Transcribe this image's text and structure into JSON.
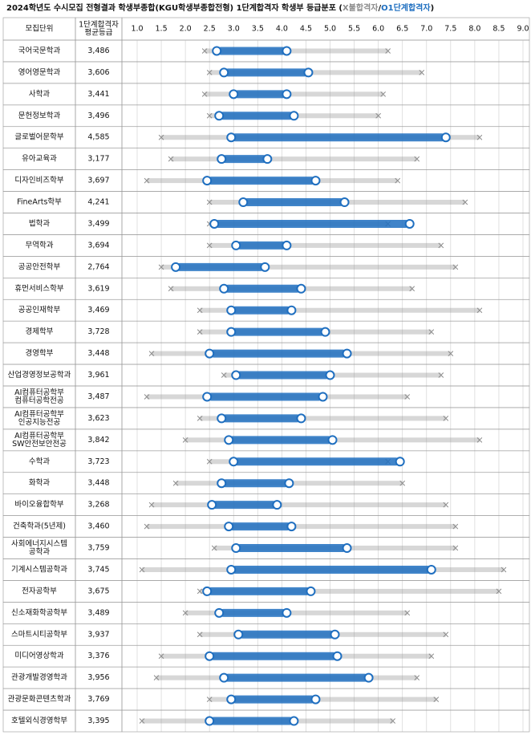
{
  "chart_data": {
    "type": "strip",
    "title": "2024학년도 수시모집 전형결과 학생부종합(KGU학생부종합전형) 1단계합격자 학생부 등급분포 (",
    "legend": [
      {
        "name": "X불합격자",
        "color": "#8c8c8c"
      },
      {
        "name": "O1단계합격자",
        "color": "#1f6fc0"
      }
    ],
    "legend_separator": "/",
    "legend_close": ")",
    "columns": [
      "모집단위",
      [
        "1단계합격자",
        "평균등급"
      ]
    ],
    "xlim": [
      1.0,
      9.0
    ],
    "xticks": [
      {
        "value": 1.0,
        "label": "1.0"
      },
      1.5,
      {
        "value": 2.0,
        "label": "2.0"
      },
      2.5,
      {
        "value": 3.0,
        "label": "3.0"
      },
      3.5,
      {
        "value": 4.0,
        "label": "4.0"
      },
      4.5,
      {
        "value": 5.0,
        "label": "5.0"
      },
      5.5,
      {
        "value": 6.0,
        "label": "6.0"
      },
      6.5,
      {
        "value": 7.0,
        "label": "7.0"
      },
      7.5,
      {
        "value": 8.0,
        "label": "8.0"
      },
      8.5,
      {
        "value": 9.0,
        "label": "9.0"
      }
    ],
    "grid": true,
    "rows": [
      {
        "name": "국어국문학과",
        "average": 3.486,
        "average_label": "3,486",
        "pass_range": [
          2.65,
          4.1
        ],
        "fail_range": [
          2.4,
          6.2
        ]
      },
      {
        "name": "영어영문학과",
        "average": 3.606,
        "average_label": "3,606",
        "pass_range": [
          2.8,
          4.55
        ],
        "fail_range": [
          2.5,
          6.9
        ]
      },
      {
        "name": "사학과",
        "average": 3.441,
        "average_label": "3,441",
        "pass_range": [
          3.0,
          4.1
        ],
        "fail_range": [
          2.4,
          6.1
        ]
      },
      {
        "name": "문헌정보학과",
        "average": 3.496,
        "average_label": "3,496",
        "pass_range": [
          2.7,
          4.25
        ],
        "fail_range": [
          2.5,
          6.0
        ]
      },
      {
        "name": "글로벌어문학부",
        "average": 4.585,
        "average_label": "4,585",
        "pass_range": [
          2.95,
          7.4
        ],
        "fail_range": [
          1.5,
          8.1
        ]
      },
      {
        "name": "유아교육과",
        "average": 3.177,
        "average_label": "3,177",
        "pass_range": [
          2.75,
          3.7
        ],
        "fail_range": [
          1.7,
          6.8
        ]
      },
      {
        "name": "디자인비즈학부",
        "average": 3.697,
        "average_label": "3,697",
        "pass_range": [
          2.45,
          4.7
        ],
        "fail_range": [
          1.2,
          6.4
        ]
      },
      {
        "name": "FineArts학부",
        "average": 4.241,
        "average_label": "4,241",
        "pass_range": [
          3.2,
          5.3
        ],
        "fail_range": [
          2.5,
          7.8
        ]
      },
      {
        "name": "법학과",
        "average": 3.499,
        "average_label": "3,499",
        "pass_range": [
          2.6,
          6.65
        ],
        "fail_range": [
          2.5,
          6.2
        ]
      },
      {
        "name": "무역학과",
        "average": 3.694,
        "average_label": "3,694",
        "pass_range": [
          3.05,
          4.1
        ],
        "fail_range": [
          2.5,
          7.3
        ]
      },
      {
        "name": "공공안전학부",
        "average": 2.764,
        "average_label": "2,764",
        "pass_range": [
          1.8,
          3.65
        ],
        "fail_range": [
          1.5,
          7.6
        ]
      },
      {
        "name": "휴먼서비스학부",
        "average": 3.619,
        "average_label": "3,619",
        "pass_range": [
          2.8,
          4.4
        ],
        "fail_range": [
          1.7,
          6.7
        ]
      },
      {
        "name": "공공인재학부",
        "average": 3.469,
        "average_label": "3,469",
        "pass_range": [
          2.95,
          4.2
        ],
        "fail_range": [
          2.3,
          8.1
        ]
      },
      {
        "name": "경제학부",
        "average": 3.728,
        "average_label": "3,728",
        "pass_range": [
          2.95,
          4.9
        ],
        "fail_range": [
          2.3,
          7.1
        ]
      },
      {
        "name": "경영학부",
        "average": 3.448,
        "average_label": "3,448",
        "pass_range": [
          2.5,
          5.35
        ],
        "fail_range": [
          1.3,
          7.5
        ]
      },
      {
        "name": "산업경영정보공학과",
        "average": 3.961,
        "average_label": "3,961",
        "pass_range": [
          3.05,
          5.0
        ],
        "fail_range": [
          2.8,
          7.3
        ]
      },
      {
        "name": [
          "AI컴퓨터공학부",
          "컴퓨터공학전공"
        ],
        "average": 3.487,
        "average_label": "3,487",
        "pass_range": [
          2.45,
          4.85
        ],
        "fail_range": [
          1.2,
          6.6
        ]
      },
      {
        "name": [
          "AI컴퓨터공학부",
          "인공지능전공"
        ],
        "average": 3.623,
        "average_label": "3,623",
        "pass_range": [
          2.75,
          4.4
        ],
        "fail_range": [
          2.3,
          7.4
        ]
      },
      {
        "name": [
          "AI컴퓨터공학부",
          "SW안전보안전공"
        ],
        "average": 3.842,
        "average_label": "3,842",
        "pass_range": [
          2.9,
          5.05
        ],
        "fail_range": [
          2.0,
          8.1
        ]
      },
      {
        "name": "수학과",
        "average": 3.723,
        "average_label": "3,723",
        "pass_range": [
          3.0,
          6.45
        ],
        "fail_range": [
          2.5,
          6.2
        ]
      },
      {
        "name": "화학과",
        "average": 3.448,
        "average_label": "3,448",
        "pass_range": [
          2.75,
          4.15
        ],
        "fail_range": [
          1.8,
          6.5
        ]
      },
      {
        "name": "바이오융합학부",
        "average": 3.268,
        "average_label": "3,268",
        "pass_range": [
          2.55,
          3.9
        ],
        "fail_range": [
          1.3,
          7.4
        ]
      },
      {
        "name": "건축학과(5년제)",
        "average": 3.46,
        "average_label": "3,460",
        "pass_range": [
          2.9,
          4.2
        ],
        "fail_range": [
          1.2,
          7.6
        ]
      },
      {
        "name": [
          "사회에너지시스템",
          "공학과"
        ],
        "average": 3.759,
        "average_label": "3,759",
        "pass_range": [
          3.05,
          5.35
        ],
        "fail_range": [
          2.6,
          7.6
        ]
      },
      {
        "name": "기계시스템공학과",
        "average": 3.745,
        "average_label": "3,745",
        "pass_range": [
          2.95,
          7.1
        ],
        "fail_range": [
          1.1,
          8.6
        ]
      },
      {
        "name": "전자공학부",
        "average": 3.675,
        "average_label": "3,675",
        "pass_range": [
          2.45,
          4.6
        ],
        "fail_range": [
          2.3,
          8.5
        ]
      },
      {
        "name": "신소재화학공학부",
        "average": 3.489,
        "average_label": "3,489",
        "pass_range": [
          2.7,
          4.1
        ],
        "fail_range": [
          2.0,
          6.6
        ]
      },
      {
        "name": "스마트시티공학부",
        "average": 3.937,
        "average_label": "3,937",
        "pass_range": [
          3.1,
          5.1
        ],
        "fail_range": [
          2.3,
          7.4
        ]
      },
      {
        "name": "미디어영상학과",
        "average": 3.376,
        "average_label": "3,376",
        "pass_range": [
          2.5,
          5.15
        ],
        "fail_range": [
          1.5,
          7.1
        ]
      },
      {
        "name": "관광개발경영학과",
        "average": 3.956,
        "average_label": "3,956",
        "pass_range": [
          2.8,
          5.8
        ],
        "fail_range": [
          1.4,
          6.8
        ]
      },
      {
        "name": "관광문화콘텐츠학과",
        "average": 3.769,
        "average_label": "3,769",
        "pass_range": [
          2.95,
          4.7
        ],
        "fail_range": [
          2.5,
          7.2
        ]
      },
      {
        "name": "호텔외식경영학부",
        "average": 3.395,
        "average_label": "3,395",
        "pass_range": [
          2.5,
          4.25
        ],
        "fail_range": [
          1.1,
          6.3
        ]
      }
    ]
  }
}
